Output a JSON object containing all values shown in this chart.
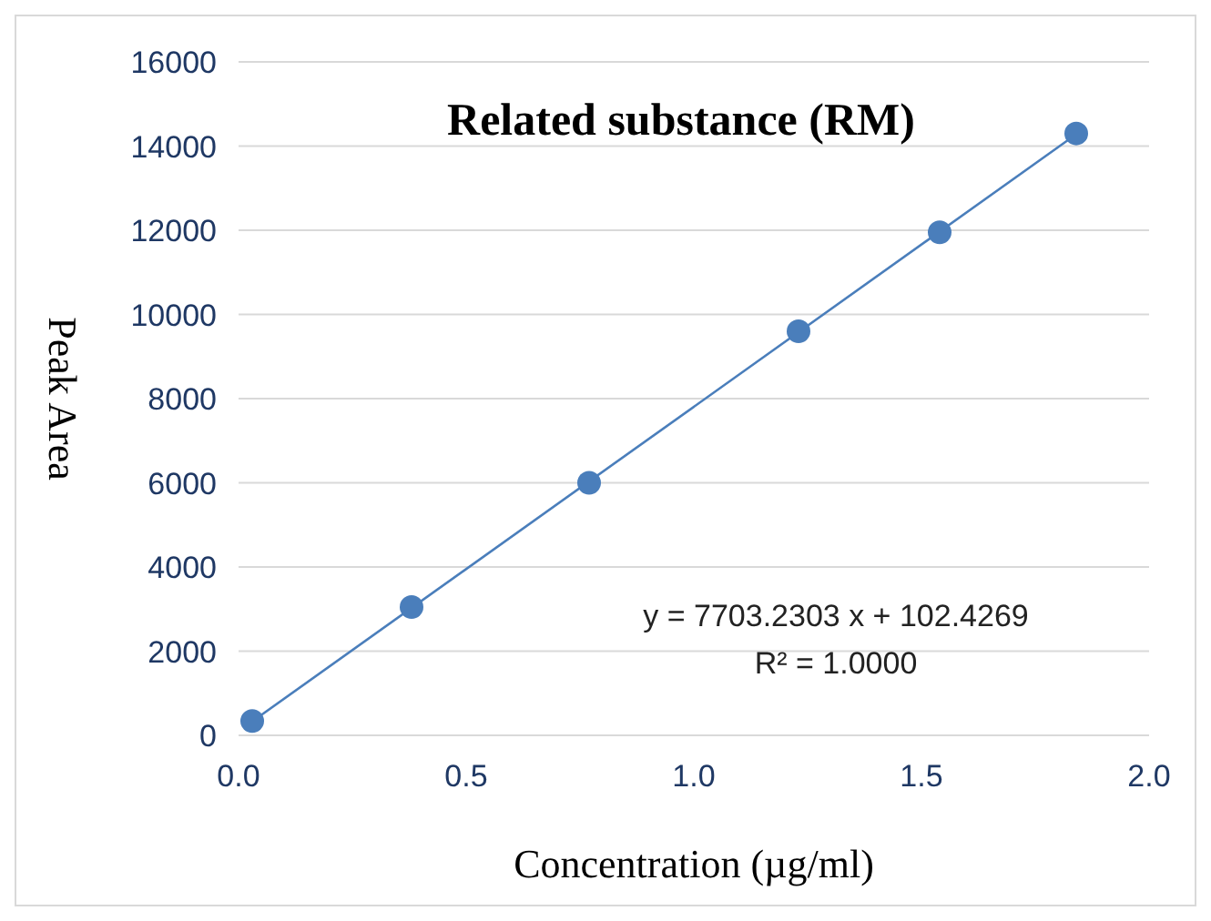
{
  "chart_data": {
    "type": "scatter",
    "title": "Related substance (RM)",
    "xlabel": "Concentration (µg/ml)",
    "ylabel": "Peak Area",
    "annotations": [
      "y = 7703.2303 x + 102.4269",
      "R² = 1.0000"
    ],
    "series": [
      {
        "color": "#4a7ebb",
        "marker": "circle",
        "x": [
          0.03,
          0.38,
          0.77,
          1.23,
          1.54,
          1.84
        ],
        "values": [
          340,
          3050,
          6000,
          9600,
          11950,
          14300
        ]
      },
      {
        "type": "line",
        "color": "#4a7ebb",
        "marker": "none",
        "x": [
          0.03,
          1.84
        ],
        "values": [
          330,
          14280
        ]
      }
    ],
    "xlim": [
      0,
      2
    ],
    "xticks": [
      {
        "value": 0,
        "label": "0.0"
      },
      {
        "value": 0.5,
        "label": "0.5"
      },
      {
        "value": 1,
        "label": "1.0"
      },
      {
        "value": 1.5,
        "label": "1.5"
      },
      {
        "value": 2,
        "label": "2.0"
      }
    ],
    "ylim": [
      0,
      16000
    ],
    "yticks": [
      0,
      2000,
      4000,
      6000,
      8000,
      10000,
      12000,
      14000,
      16000
    ],
    "grid": "y",
    "legend": false,
    "line_style": "solid"
  }
}
